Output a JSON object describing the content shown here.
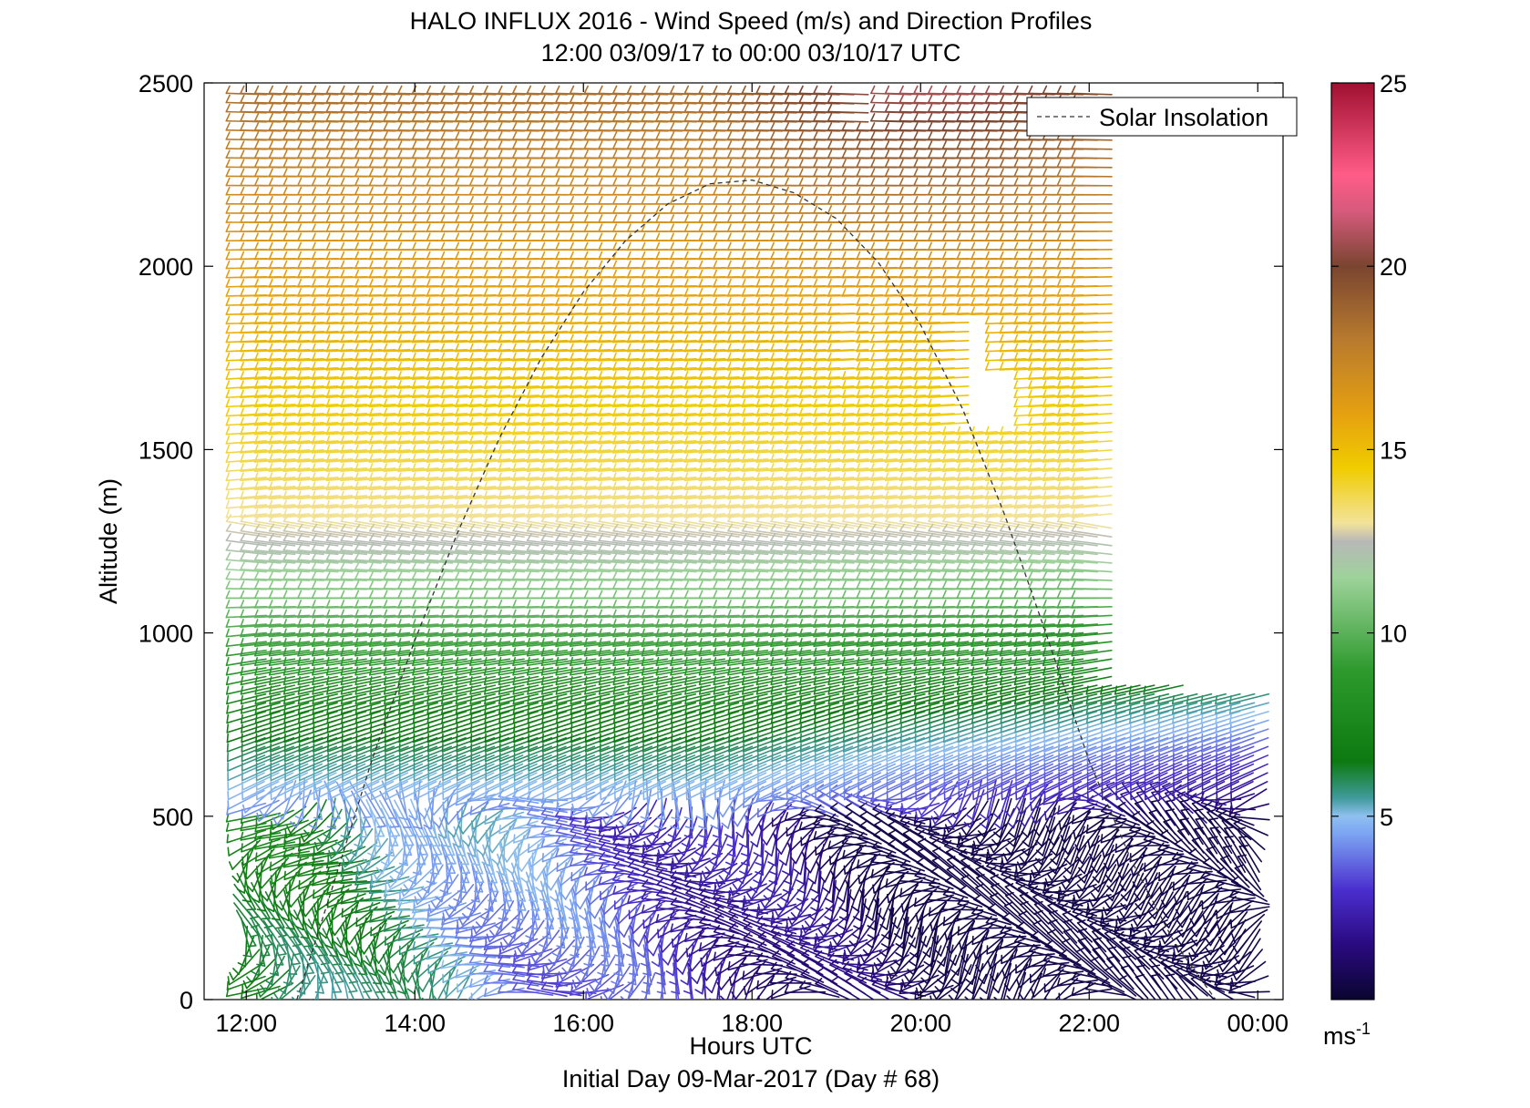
{
  "chart_data": {
    "type": "wind_barb_profile",
    "title": "HALO INFLUX 2016 - Wind Speed (m/s) and Direction Profiles",
    "subtitle": "12:00 03/09/17 to 00:00 03/10/17  UTC",
    "xlabel": "Hours UTC",
    "ylabel": "Altitude (m)",
    "footer": "Initial Day 09-Mar-2017 (Day # 68)",
    "xlim": [
      11.5,
      24.3
    ],
    "ylim": [
      0,
      2500
    ],
    "x_ticks": [
      12,
      14,
      16,
      18,
      20,
      22,
      24
    ],
    "x_tick_labels": [
      "12:00",
      "14:00",
      "16:00",
      "18:00",
      "20:00",
      "22:00",
      "00:00"
    ],
    "y_ticks": [
      0,
      500,
      1000,
      1500,
      2000,
      2500
    ],
    "y_tick_labels": [
      "0",
      "500",
      "1000",
      "1500",
      "2000",
      "2500"
    ],
    "grid": false,
    "legend": {
      "position": "top-right",
      "entries": [
        "Solar Insolation"
      ]
    },
    "colorbar": {
      "min": 0,
      "max": 25,
      "ticks": [
        5,
        10,
        15,
        20,
        25
      ],
      "tick_labels": [
        "5",
        "10",
        "15",
        "20",
        "25"
      ],
      "units_label": "ms",
      "units_exp": "-1",
      "colors": [
        [
          0,
          "#0a0530"
        ],
        [
          1.5,
          "#2a0a80"
        ],
        [
          3,
          "#4b2fcf"
        ],
        [
          4.5,
          "#7ba3f2"
        ],
        [
          5,
          "#8fc0f0"
        ],
        [
          5.5,
          "#3f9a9a"
        ],
        [
          6.5,
          "#0c7a10"
        ],
        [
          9,
          "#2e9a2e"
        ],
        [
          11.5,
          "#9ed39a"
        ],
        [
          12.5,
          "#b8b8b8"
        ],
        [
          13,
          "#f3e39a"
        ],
        [
          14.5,
          "#f0cc00"
        ],
        [
          16,
          "#e5a010"
        ],
        [
          18,
          "#b87a2e"
        ],
        [
          20,
          "#7a4530"
        ],
        [
          21.5,
          "#d65a7c"
        ],
        [
          22.5,
          "#ff5c88"
        ],
        [
          25,
          "#a01030"
        ]
      ]
    },
    "solar_insolation": {
      "style": "dashed",
      "x": [
        12.6,
        13.0,
        13.5,
        14.0,
        14.5,
        15.0,
        15.5,
        16.0,
        16.5,
        17.0,
        17.5,
        18.0,
        18.5,
        19.0,
        19.5,
        20.0,
        20.5,
        21.0,
        21.5,
        22.0,
        22.5,
        23.0,
        23.5
      ],
      "y": [
        0,
        290,
        660,
        980,
        1270,
        1530,
        1750,
        1930,
        2070,
        2170,
        2225,
        2235,
        2200,
        2130,
        2010,
        1840,
        1610,
        1320,
        990,
        650,
        380,
        160,
        0
      ]
    },
    "barbs": {
      "x_start": 12.0,
      "x_end": 23.9,
      "x_step": 0.17,
      "alt_start": 20,
      "alt_end": 2490,
      "alt_step": 25,
      "gaps": [
        {
          "x": [
            19.15,
            19.5
          ],
          "alt": [
            2380,
            2500
          ]
        },
        {
          "x": [
            19.15,
            19.45
          ],
          "alt": [
            1700,
            1900
          ]
        },
        {
          "x": [
            20.4,
            20.9
          ],
          "alt": [
            1600,
            1850
          ]
        },
        {
          "x": [
            20.4,
            21.2
          ],
          "alt": [
            1550,
            1700
          ]
        },
        {
          "x": [
            23.6,
            23.95
          ],
          "alt": [
            1250,
            1400
          ]
        }
      ]
    }
  }
}
